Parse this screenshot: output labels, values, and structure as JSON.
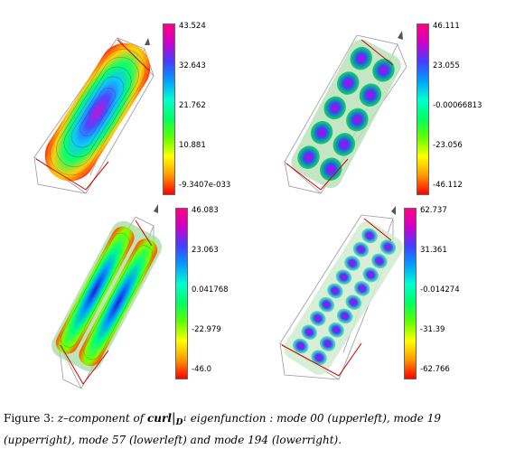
{
  "figure": {
    "panels": [
      {
        "mode": "00",
        "position": "upperleft",
        "colorbar_ticks": [
          "43.524",
          "32.643",
          "21.762",
          "10.881",
          "-9.3407e-033"
        ]
      },
      {
        "mode": "19",
        "position": "upperright",
        "colorbar_ticks": [
          "46.111",
          "23.055",
          "-0.00066813",
          "-23.056",
          "-46.112"
        ]
      },
      {
        "mode": "57",
        "position": "lowerleft",
        "colorbar_ticks": [
          "46.083",
          "23.063",
          "0.041768",
          "-22.979",
          "-46.0"
        ]
      },
      {
        "mode": "194",
        "position": "lowerright",
        "colorbar_ticks": [
          "62.737",
          "31.361",
          "-0.014274",
          "-31.39",
          "-62.766"
        ]
      }
    ]
  },
  "caption": {
    "label": "Figure 3:",
    "text_before": "z–component of",
    "bold_term": "curl",
    "subscript": "D",
    "superscript": "1",
    "text_after": "eigenfunction : mode 00 (upperleft), mode 19 (upperright), mode 57 (lowerleft) and mode 194 (lowerright)."
  },
  "colors": {
    "colorbar": [
      "#ff0080",
      "#cc00cc",
      "#4040ff",
      "#00a0ff",
      "#00ffd0",
      "#00ff60",
      "#60ff00",
      "#ffff00",
      "#ff9900",
      "#ff0000"
    ],
    "box_edge": "#999999",
    "cut_edge": "#cc0000"
  }
}
